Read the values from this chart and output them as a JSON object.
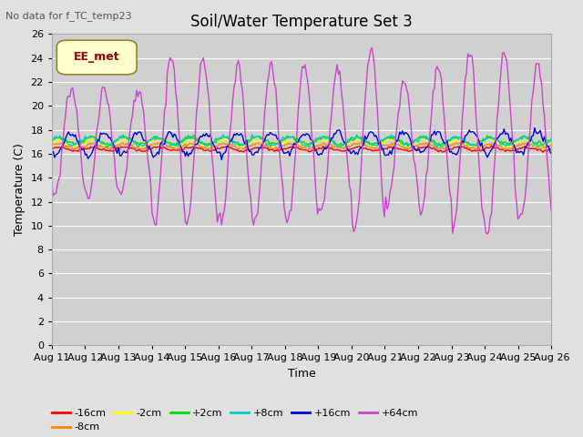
{
  "title": "Soil/Water Temperature Set 3",
  "xlabel": "Time",
  "ylabel": "Temperature (C)",
  "no_data_label": "No data for f_TC_temp23",
  "legend_label": "EE_met",
  "ylim": [
    0,
    26
  ],
  "yticks": [
    0,
    2,
    4,
    6,
    8,
    10,
    12,
    14,
    16,
    18,
    20,
    22,
    24,
    26
  ],
  "series": [
    {
      "label": "-16cm",
      "color": "#ff0000"
    },
    {
      "label": "-8cm",
      "color": "#ff8800"
    },
    {
      "label": "-2cm",
      "color": "#ffff00"
    },
    {
      "label": "+2cm",
      "color": "#00dd00"
    },
    {
      "label": "+8cm",
      "color": "#00cccc"
    },
    {
      "label": "+16cm",
      "color": "#0000dd"
    },
    {
      "label": "+64cm",
      "color": "#cc44cc"
    }
  ],
  "bg_color": "#e0e0e0",
  "plot_bg_color": "#d0d0d0",
  "grid_color": "#ffffff",
  "title_fontsize": 12,
  "label_fontsize": 9,
  "tick_fontsize": 8
}
